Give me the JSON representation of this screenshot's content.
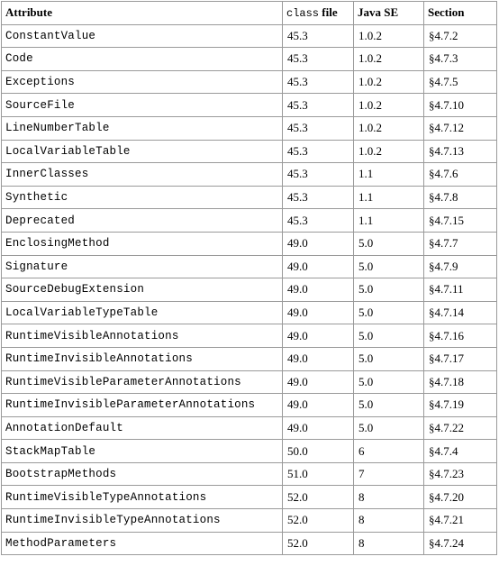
{
  "table": {
    "headers": {
      "attribute": "Attribute",
      "class_file_code": "class",
      "class_file_word": "file",
      "java_se": "Java SE",
      "section": "Section"
    },
    "rows": [
      {
        "attribute": "ConstantValue",
        "class_file": "45.3",
        "java_se": "1.0.2",
        "section": "§4.7.2"
      },
      {
        "attribute": "Code",
        "class_file": "45.3",
        "java_se": "1.0.2",
        "section": "§4.7.3"
      },
      {
        "attribute": "Exceptions",
        "class_file": "45.3",
        "java_se": "1.0.2",
        "section": "§4.7.5"
      },
      {
        "attribute": "SourceFile",
        "class_file": "45.3",
        "java_se": "1.0.2",
        "section": "§4.7.10"
      },
      {
        "attribute": "LineNumberTable",
        "class_file": "45.3",
        "java_se": "1.0.2",
        "section": "§4.7.12"
      },
      {
        "attribute": "LocalVariableTable",
        "class_file": "45.3",
        "java_se": "1.0.2",
        "section": "§4.7.13"
      },
      {
        "attribute": "InnerClasses",
        "class_file": "45.3",
        "java_se": "1.1",
        "section": "§4.7.6"
      },
      {
        "attribute": "Synthetic",
        "class_file": "45.3",
        "java_se": "1.1",
        "section": "§4.7.8"
      },
      {
        "attribute": "Deprecated",
        "class_file": "45.3",
        "java_se": "1.1",
        "section": "§4.7.15"
      },
      {
        "attribute": "EnclosingMethod",
        "class_file": "49.0",
        "java_se": "5.0",
        "section": "§4.7.7"
      },
      {
        "attribute": "Signature",
        "class_file": "49.0",
        "java_se": "5.0",
        "section": "§4.7.9"
      },
      {
        "attribute": "SourceDebugExtension",
        "class_file": "49.0",
        "java_se": "5.0",
        "section": "§4.7.11"
      },
      {
        "attribute": "LocalVariableTypeTable",
        "class_file": "49.0",
        "java_se": "5.0",
        "section": "§4.7.14"
      },
      {
        "attribute": "RuntimeVisibleAnnotations",
        "class_file": "49.0",
        "java_se": "5.0",
        "section": "§4.7.16"
      },
      {
        "attribute": "RuntimeInvisibleAnnotations",
        "class_file": "49.0",
        "java_se": "5.0",
        "section": "§4.7.17"
      },
      {
        "attribute": "RuntimeVisibleParameterAnnotations",
        "class_file": "49.0",
        "java_se": "5.0",
        "section": "§4.7.18"
      },
      {
        "attribute": "RuntimeInvisibleParameterAnnotations",
        "class_file": "49.0",
        "java_se": "5.0",
        "section": "§4.7.19"
      },
      {
        "attribute": "AnnotationDefault",
        "class_file": "49.0",
        "java_se": "5.0",
        "section": "§4.7.22"
      },
      {
        "attribute": "StackMapTable",
        "class_file": "50.0",
        "java_se": "6",
        "section": "§4.7.4"
      },
      {
        "attribute": "BootstrapMethods",
        "class_file": "51.0",
        "java_se": "7",
        "section": "§4.7.23"
      },
      {
        "attribute": "RuntimeVisibleTypeAnnotations",
        "class_file": "52.0",
        "java_se": "8",
        "section": "§4.7.20"
      },
      {
        "attribute": "RuntimeInvisibleTypeAnnotations",
        "class_file": "52.0",
        "java_se": "8",
        "section": "§4.7.21"
      },
      {
        "attribute": "MethodParameters",
        "class_file": "52.0",
        "java_se": "8",
        "section": "§4.7.24"
      }
    ]
  }
}
